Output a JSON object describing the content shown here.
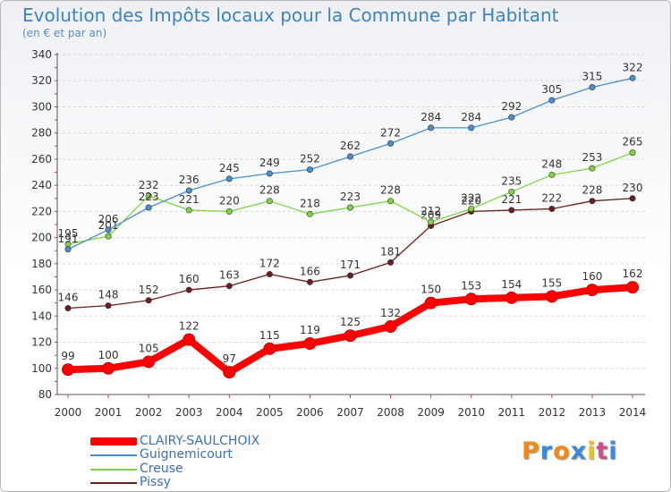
{
  "title": "Evolution des Impôts locaux pour la Commune par Habitant",
  "subtitle": "(en € et par an)",
  "logo": {
    "letters": [
      "P",
      "r",
      "o",
      "x",
      "i",
      "t",
      "i"
    ],
    "colors": [
      "#f08a18",
      "#3a8ad8",
      "#f08a18",
      "#3a8ad8",
      "#e8c22a",
      "#d84a8a",
      "#3a8ad8"
    ]
  },
  "chart_data": {
    "type": "line",
    "x": [
      "2000",
      "2001",
      "2002",
      "2003",
      "2004",
      "2005",
      "2006",
      "2007",
      "2008",
      "2009",
      "2010",
      "2011",
      "2012",
      "2013",
      "2014"
    ],
    "ylim": [
      80,
      340
    ],
    "yticks": [
      80,
      100,
      120,
      140,
      160,
      180,
      200,
      220,
      240,
      260,
      280,
      300,
      320,
      340
    ],
    "series": [
      {
        "name": "Pissy",
        "color": "#6b1e1e",
        "values": [
          146,
          148,
          152,
          160,
          163,
          172,
          166,
          171,
          181,
          209,
          220,
          221,
          222,
          228,
          230
        ]
      },
      {
        "name": "Creuse",
        "color": "#7fd444",
        "values": [
          195,
          201,
          232,
          221,
          220,
          228,
          218,
          223,
          228,
          212,
          222,
          235,
          248,
          253,
          265
        ]
      },
      {
        "name": "Guignemicourt",
        "color": "#4a90d0",
        "values": [
          191,
          206,
          223,
          236,
          245,
          249,
          252,
          262,
          272,
          284,
          284,
          292,
          305,
          315,
          322
        ]
      },
      {
        "name": "CLAIRY-SAULCHOIX",
        "color": "#ff0000",
        "values": [
          99,
          100,
          105,
          122,
          97,
          115,
          119,
          125,
          132,
          150,
          153,
          154,
          155,
          160,
          162
        ]
      }
    ],
    "legend": [
      "CLAIRY-SAULCHOIX",
      "Guignemicourt",
      "Creuse",
      "Pissy"
    ]
  }
}
